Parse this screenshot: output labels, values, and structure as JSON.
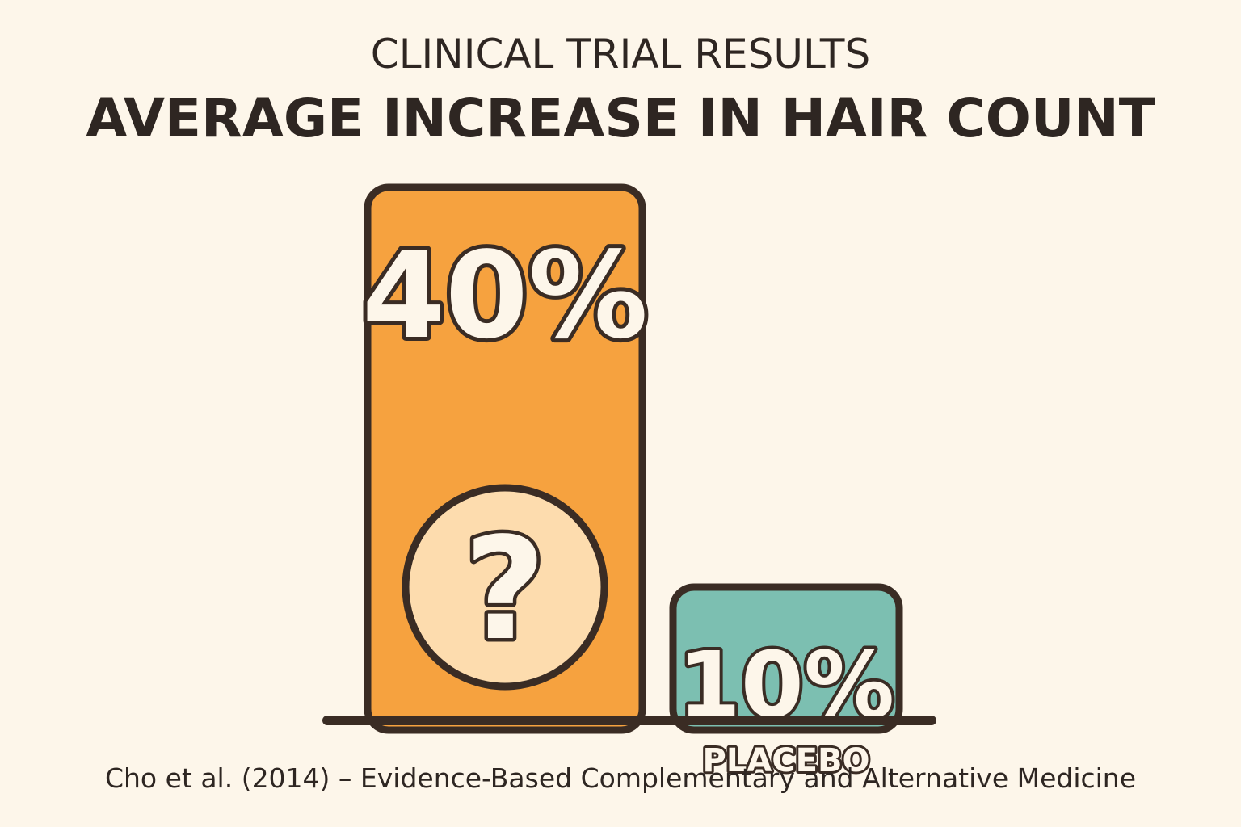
{
  "chart_data": {
    "type": "bar",
    "subtitle": "CLINICAL TRIAL RESULTS",
    "title": "AVERAGE INCREASE IN HAIR COUNT",
    "categories": [
      "?",
      "PLACEBO"
    ],
    "values": [
      40,
      10
    ],
    "value_labels": [
      "40%",
      "10%"
    ],
    "unit": "%",
    "ylim": [
      0,
      40
    ],
    "grid": false,
    "legend": "none",
    "bar_colors": [
      "#f6a23f",
      "#7cbfb1"
    ],
    "mystery_circle_color": "#fddcae",
    "outline_color": "#3a2c24",
    "source": "Cho et al. (2014) – Evidence-Based Complementary and Alternative Medicine"
  }
}
